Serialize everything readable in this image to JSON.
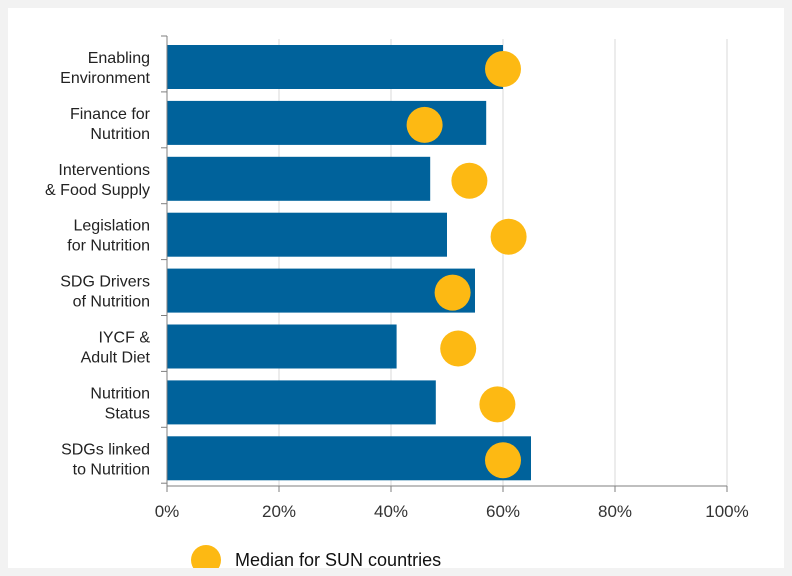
{
  "chart_data": {
    "type": "bar",
    "orientation": "horizontal",
    "categories": [
      [
        "Enabling",
        "Environment"
      ],
      [
        "Finance for",
        "Nutrition"
      ],
      [
        "Interventions",
        "& Food Supply"
      ],
      [
        "Legislation",
        "for Nutrition"
      ],
      [
        "SDG Drivers",
        "of Nutrition"
      ],
      [
        "IYCF &",
        "Adult Diet"
      ],
      [
        "Nutrition",
        "Status"
      ],
      [
        "SDGs linked",
        "to Nutrition"
      ]
    ],
    "series": [
      {
        "values": [
          60,
          57,
          47,
          50,
          55,
          41,
          48,
          65
        ],
        "color": "#00629b"
      },
      {
        "name": "Median for SUN countries",
        "marker": "circle",
        "values": [
          60,
          46,
          54,
          61,
          51,
          52,
          59,
          60
        ],
        "color": "#fdb913"
      }
    ],
    "xlim": [
      0,
      100
    ],
    "xticks": [
      0,
      20,
      40,
      60,
      80,
      100
    ],
    "xtick_labels": [
      "0%",
      "20%",
      "40%",
      "60%",
      "80%",
      "100%"
    ],
    "grid": "vertical",
    "legend": "bottom"
  }
}
